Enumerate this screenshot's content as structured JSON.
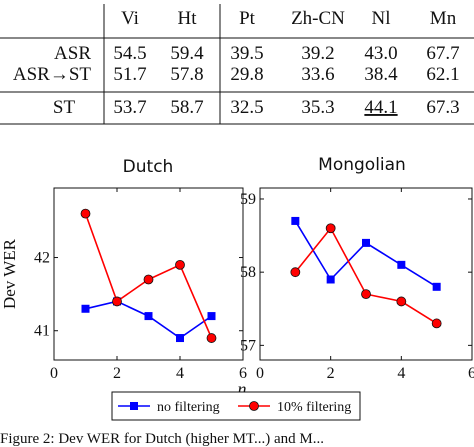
{
  "table": {
    "columns": [
      "Vi",
      "Ht",
      "Pt",
      "Zh-CN",
      "Nl",
      "Mn"
    ],
    "rows": [
      {
        "label": "ASR",
        "values": [
          "54.5",
          "59.4",
          "39.5",
          "39.2",
          "43.0",
          "67.7"
        ]
      },
      {
        "label": "ASR→ST",
        "values": [
          "51.7",
          "57.8",
          "29.8",
          "33.6",
          "38.4",
          "62.1"
        ]
      },
      {
        "label": "ST",
        "values": [
          "53.7",
          "58.7",
          "32.5",
          "35.3",
          "44.1",
          "67.3"
        ],
        "underlined_index": 4
      }
    ]
  },
  "chart_data": [
    {
      "type": "line",
      "title": "Dutch",
      "xlabel": "n",
      "ylabel": "Dev WER",
      "xlim": [
        0,
        6
      ],
      "ylim": [
        40.6,
        42.95
      ],
      "xticks": [
        0,
        2,
        4,
        6
      ],
      "yticks": [
        41,
        42
      ],
      "series": [
        {
          "name": "no filtering",
          "color": "#0000ff",
          "marker": "square",
          "x": [
            1,
            2,
            3,
            4,
            5
          ],
          "y": [
            41.3,
            41.4,
            41.2,
            40.9,
            41.2
          ]
        },
        {
          "name": "10% filtering",
          "color": "#ff0000",
          "marker": "circle",
          "x": [
            1,
            2,
            3,
            4,
            5
          ],
          "y": [
            42.6,
            41.4,
            41.7,
            41.9,
            40.9
          ]
        }
      ]
    },
    {
      "type": "line",
      "title": "Mongolian",
      "xlabel": "n",
      "ylabel": "",
      "xlim": [
        0,
        6
      ],
      "ylim": [
        56.8,
        59.15
      ],
      "xticks": [
        0,
        2,
        4,
        6
      ],
      "yticks": [
        57,
        58,
        59
      ],
      "series": [
        {
          "name": "no filtering",
          "color": "#0000ff",
          "marker": "square",
          "x": [
            1,
            2,
            3,
            4,
            5
          ],
          "y": [
            58.7,
            57.9,
            58.4,
            58.1,
            57.8
          ]
        },
        {
          "name": "10% filtering",
          "color": "#ff0000",
          "marker": "circle",
          "x": [
            1,
            2,
            3,
            4,
            5
          ],
          "y": [
            58.0,
            58.6,
            57.7,
            57.6,
            57.3
          ]
        }
      ]
    }
  ],
  "legend": {
    "position": "bottom-center"
  },
  "caption_fragment": "Figure 2: Dev WER for Dutch (higher MT...) and M..."
}
